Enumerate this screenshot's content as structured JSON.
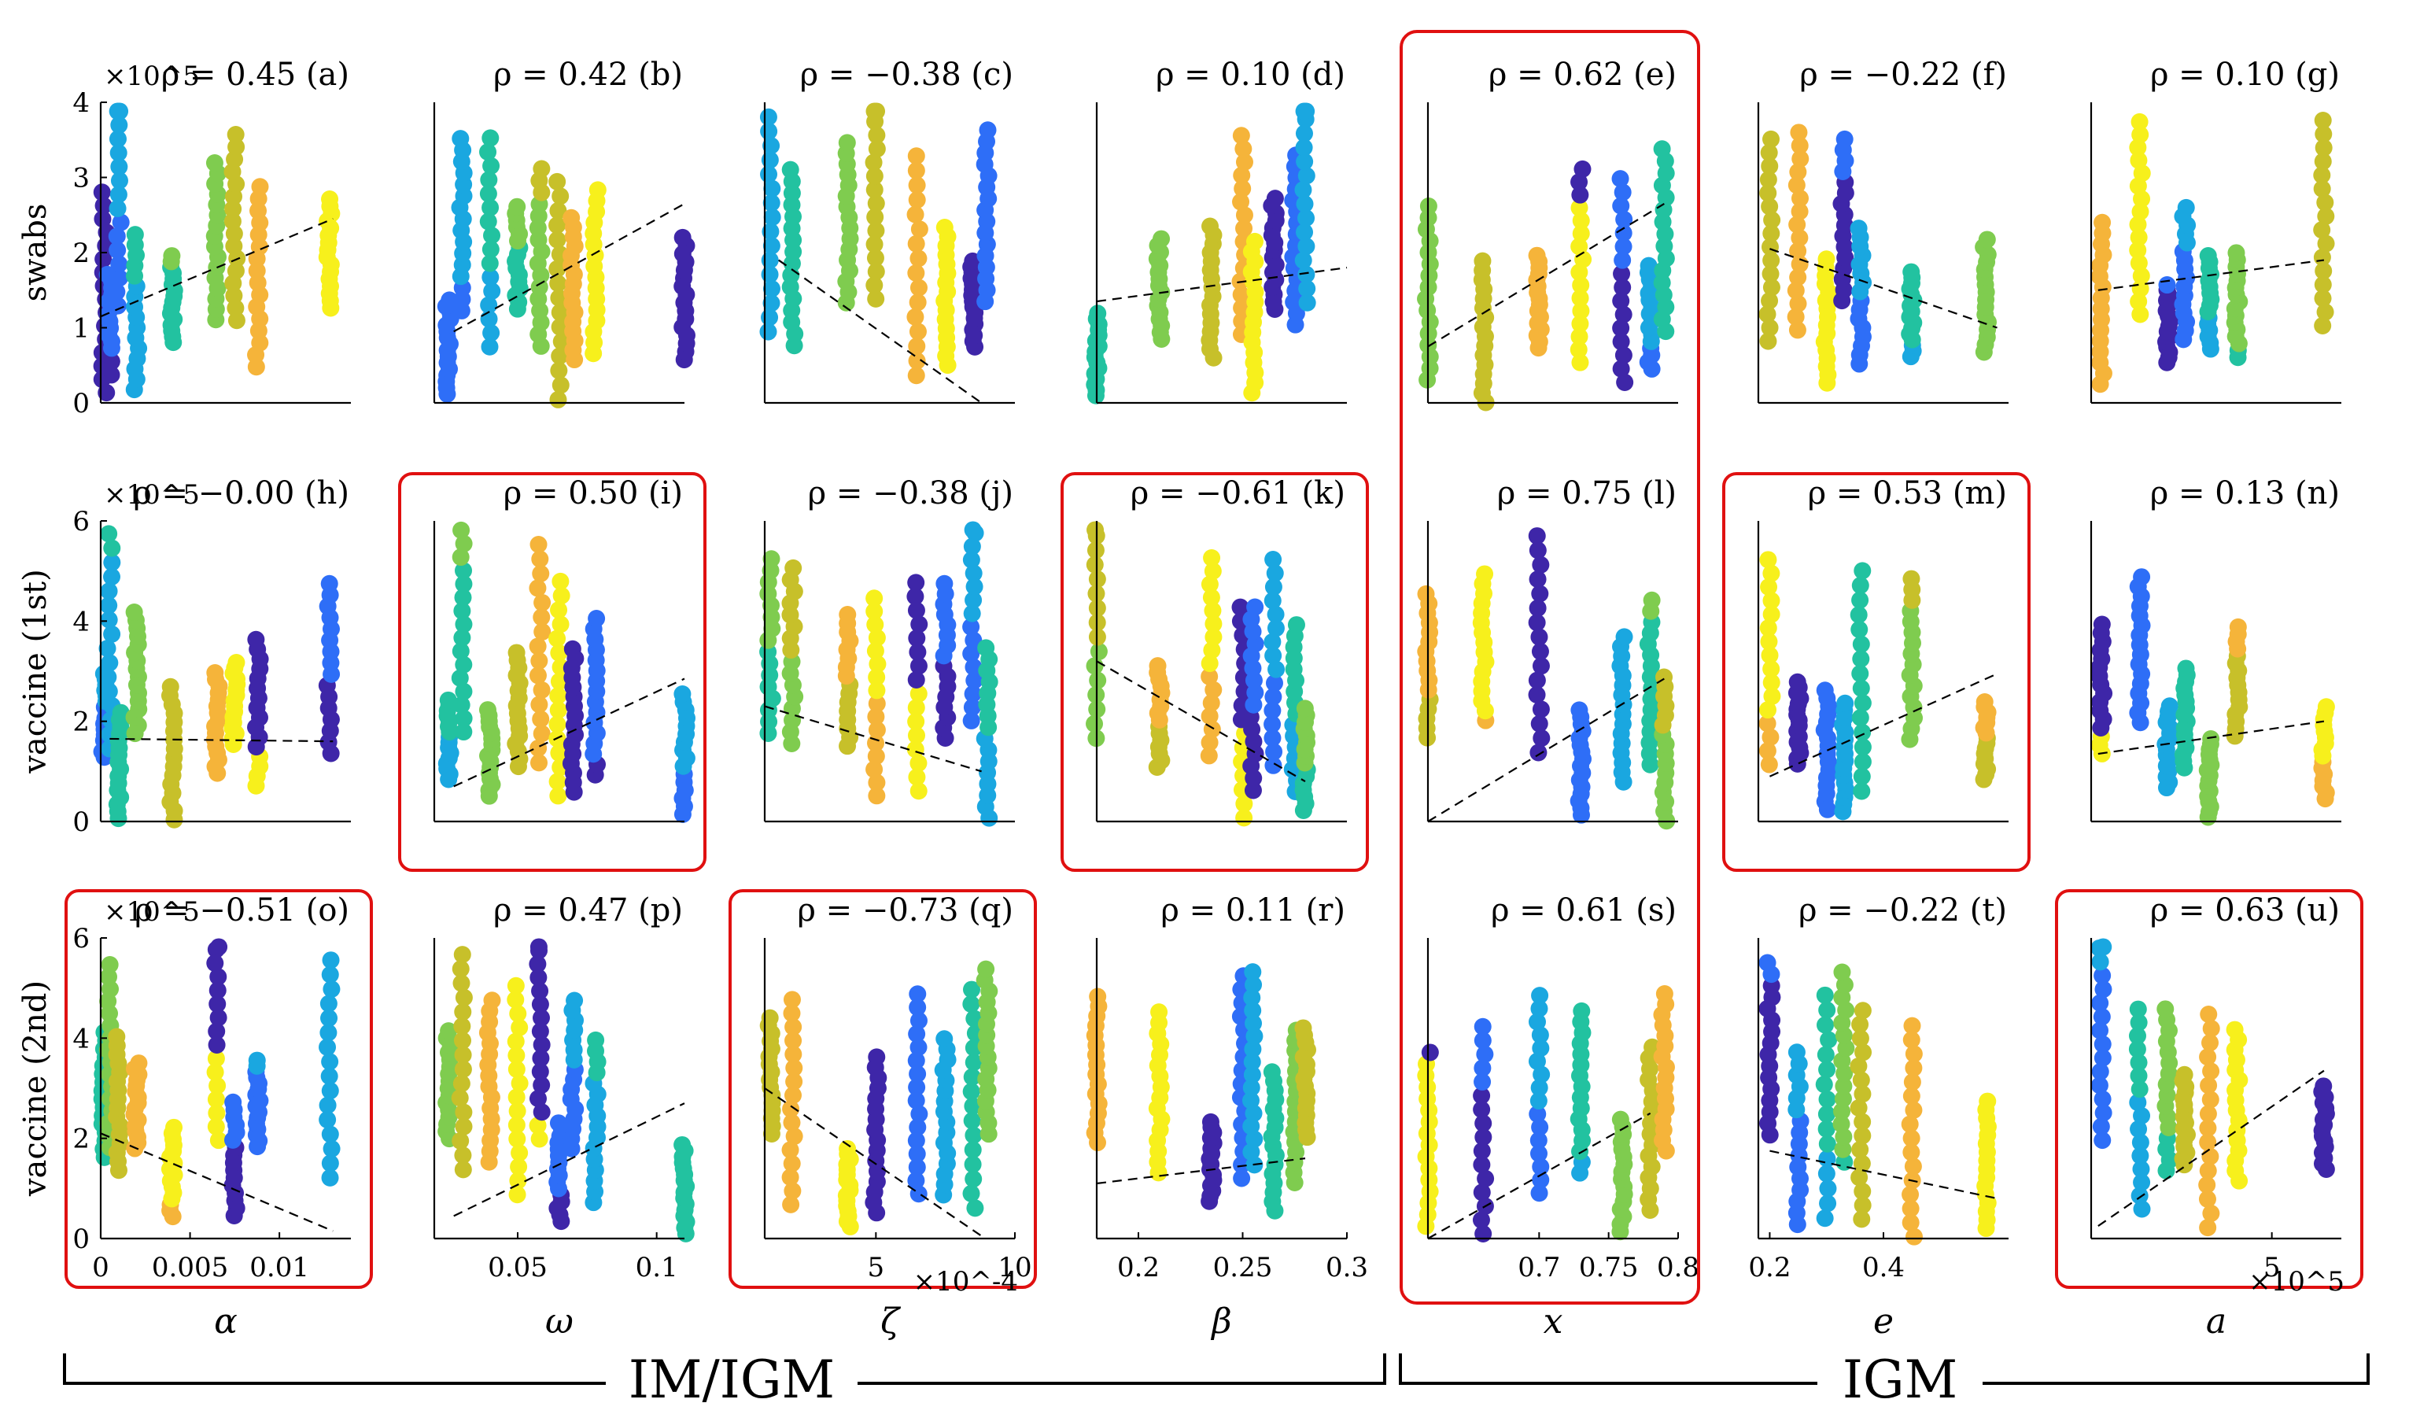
{
  "chart_data": {
    "type": "scatter",
    "description_groups": [
      "IM/IGM",
      "IGM"
    ],
    "colormap": [
      "#3e26a8",
      "#2e6ef7",
      "#1aa7e0",
      "#22c2a0",
      "#7fcc4f",
      "#c7c02a",
      "#f5b43a",
      "#f7f01c"
    ],
    "row_labels": [
      "swabs",
      "vaccine (1st)",
      "vaccine (2nd)"
    ],
    "row_scales": [
      "×10^5",
      "×10^5",
      "×10^5"
    ],
    "row_ylim": [
      [
        0,
        4
      ],
      [
        0,
        6
      ],
      [
        0,
        6
      ]
    ],
    "row_yticks": [
      [
        "0",
        "1",
        "2",
        "3",
        "4"
      ],
      [
        "0",
        "2",
        "4",
        "6"
      ],
      [
        "0",
        "2",
        "4",
        "6"
      ]
    ],
    "col_labels": [
      "α",
      "ω",
      "ζ",
      "β",
      "x",
      "e",
      "a"
    ],
    "col_xlim": [
      [
        0,
        0.014
      ],
      [
        0.02,
        0.11
      ],
      [
        0.0001,
        0.001
      ],
      [
        0.18,
        0.3
      ],
      [
        0.62,
        0.8
      ],
      [
        0.18,
        0.62
      ],
      [
        -20000,
        700000
      ]
    ],
    "col_xticks": [
      [
        "0",
        "0.005",
        "0.01"
      ],
      [
        "0.05",
        "0.1"
      ],
      [
        "5",
        "10"
      ],
      [
        "0.2",
        "0.25",
        "0.3"
      ],
      [
        "0.7",
        "0.75",
        "0.8"
      ],
      [
        "0.2",
        "0.4"
      ],
      [
        "5"
      ]
    ],
    "col_xtick_vals": [
      [
        0,
        0.005,
        0.01
      ],
      [
        0.05,
        0.1
      ],
      [
        0.0005,
        0.001
      ],
      [
        0.2,
        0.25,
        0.3
      ],
      [
        0.7,
        0.75,
        0.8
      ],
      [
        0.2,
        0.4
      ],
      [
        500000
      ]
    ],
    "col_multipliers": [
      "",
      "",
      "×10^-4",
      "",
      "",
      "",
      "×10^5"
    ],
    "panels": [
      {
        "id": "a",
        "title": "ρ = 0.45 (a)",
        "rho": 0.45,
        "highlight": false
      },
      {
        "id": "b",
        "title": "ρ = 0.42 (b)",
        "rho": 0.42,
        "highlight": false
      },
      {
        "id": "c",
        "title": "ρ = −0.38 (c)",
        "rho": -0.38,
        "highlight": false
      },
      {
        "id": "d",
        "title": "ρ = 0.10 (d)",
        "rho": 0.1,
        "highlight": false
      },
      {
        "id": "e",
        "title": "ρ = 0.62 (e)",
        "rho": 0.62,
        "highlight": true
      },
      {
        "id": "f",
        "title": "ρ = −0.22 (f)",
        "rho": -0.22,
        "highlight": false
      },
      {
        "id": "g",
        "title": "ρ = 0.10 (g)",
        "rho": 0.1,
        "highlight": false
      },
      {
        "id": "h",
        "title": "ρ = −0.00 (h)",
        "rho": -0.0,
        "highlight": false
      },
      {
        "id": "i",
        "title": "ρ = 0.50 (i)",
        "rho": 0.5,
        "highlight": true
      },
      {
        "id": "j",
        "title": "ρ = −0.38 (j)",
        "rho": -0.38,
        "highlight": false
      },
      {
        "id": "k",
        "title": "ρ = −0.61 (k)",
        "rho": -0.61,
        "highlight": true
      },
      {
        "id": "l",
        "title": "ρ = 0.75 (l)",
        "rho": 0.75,
        "highlight": true
      },
      {
        "id": "m",
        "title": "ρ = 0.53 (m)",
        "rho": 0.53,
        "highlight": true
      },
      {
        "id": "n",
        "title": "ρ = 0.13 (n)",
        "rho": 0.13,
        "highlight": false
      },
      {
        "id": "o",
        "title": "ρ = −0.51 (o)",
        "rho": -0.51,
        "highlight": true
      },
      {
        "id": "p",
        "title": "ρ = 0.47 (p)",
        "rho": 0.47,
        "highlight": false
      },
      {
        "id": "q",
        "title": "ρ = −0.73 (q)",
        "rho": -0.73,
        "highlight": true
      },
      {
        "id": "r",
        "title": "ρ = 0.11 (r)",
        "rho": 0.11,
        "highlight": false
      },
      {
        "id": "s",
        "title": "ρ = 0.61 (s)",
        "rho": 0.61,
        "highlight": true
      },
      {
        "id": "t",
        "title": "ρ = −0.22 (t)",
        "rho": -0.22,
        "highlight": false
      },
      {
        "id": "u",
        "title": "ρ = 0.63 (u)",
        "rho": 0.63,
        "highlight": true
      }
    ],
    "trend_lines": [
      [
        [
          0,
          1.15
        ],
        [
          0.013,
          2.45
        ]
      ],
      [
        [
          0.027,
          0.95
        ],
        [
          0.11,
          2.65
        ]
      ],
      [
        [
          0.00015,
          1.9
        ],
        [
          0.00088,
          0.0
        ]
      ],
      [
        [
          0.18,
          1.35
        ],
        [
          0.3,
          1.8
        ]
      ],
      [
        [
          0.62,
          0.75
        ],
        [
          0.79,
          2.65
        ]
      ],
      [
        [
          0.2,
          2.05
        ],
        [
          0.6,
          1.0
        ]
      ],
      [
        [
          0,
          1.5
        ],
        [
          650000,
          1.9
        ]
      ],
      [
        [
          0.0005,
          1.65
        ],
        [
          0.013,
          1.6
        ]
      ],
      [
        [
          0.027,
          0.7
        ],
        [
          0.11,
          2.85
        ]
      ],
      [
        [
          0.0001,
          2.3
        ],
        [
          0.00088,
          1.0
        ]
      ],
      [
        [
          0.18,
          3.2
        ],
        [
          0.28,
          0.8
        ]
      ],
      [
        [
          0.62,
          0.0
        ],
        [
          0.79,
          2.85
        ]
      ],
      [
        [
          0.2,
          0.9
        ],
        [
          0.6,
          2.95
        ]
      ],
      [
        [
          0,
          1.35
        ],
        [
          650000,
          2.0
        ]
      ],
      [
        [
          0,
          2.1
        ],
        [
          0.013,
          0.15
        ]
      ],
      [
        [
          0.027,
          0.45
        ],
        [
          0.11,
          2.7
        ]
      ],
      [
        [
          0.0001,
          3.0
        ],
        [
          0.00088,
          0.05
        ]
      ],
      [
        [
          0.18,
          1.1
        ],
        [
          0.28,
          1.6
        ]
      ],
      [
        [
          0.62,
          0.0
        ],
        [
          0.78,
          2.5
        ]
      ],
      [
        [
          0.2,
          1.75
        ],
        [
          0.6,
          0.8
        ]
      ],
      [
        [
          0,
          0.25
        ],
        [
          650000,
          3.35
        ]
      ]
    ],
    "x_value_clusters": [
      [
        0.0002,
        0.0005,
        0.001,
        0.002,
        0.004,
        0.0065,
        0.0075,
        0.0088,
        0.0128
      ],
      [
        0.025,
        0.03,
        0.04,
        0.05,
        0.058,
        0.065,
        0.07,
        0.078,
        0.11
      ],
      [
        0.00012,
        0.0002,
        0.0004,
        0.0005,
        0.00065,
        0.00075,
        0.00085,
        0.0009
      ],
      [
        0.18,
        0.21,
        0.235,
        0.25,
        0.255,
        0.265,
        0.275,
        0.28
      ],
      [
        0.62,
        0.66,
        0.7,
        0.73,
        0.76,
        0.78,
        0.79
      ],
      [
        0.2,
        0.25,
        0.3,
        0.33,
        0.36,
        0.45,
        0.58
      ],
      [
        10000,
        120000,
        200000,
        250000,
        320000,
        400000,
        650000
      ]
    ],
    "group_labels": [
      "IM/IGM",
      "IGM"
    ]
  }
}
